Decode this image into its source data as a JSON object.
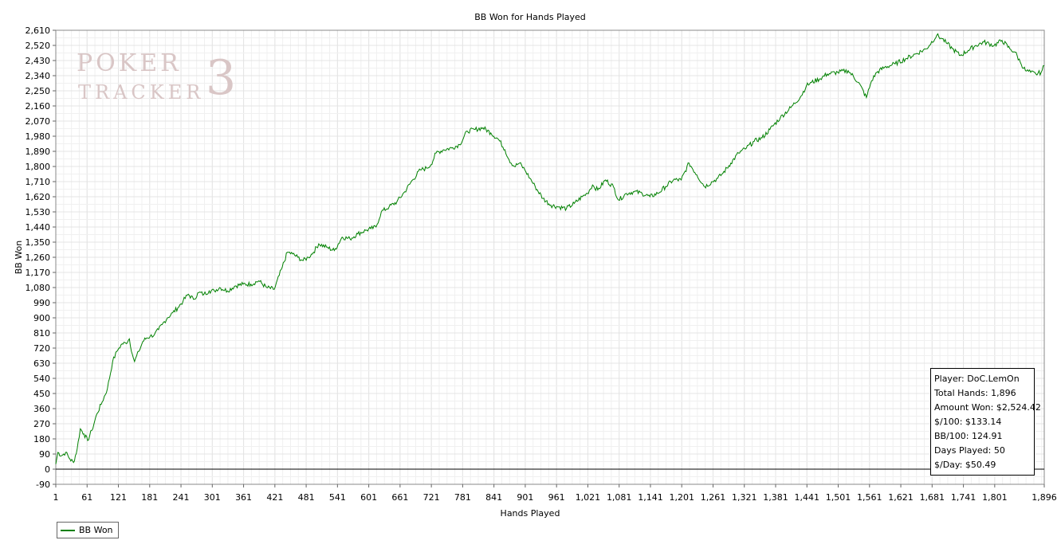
{
  "chart_data": {
    "type": "line",
    "title": "BB Won for Hands Played",
    "xlabel": "Hands Played",
    "ylabel": "BB Won",
    "xlim": [
      1,
      1896
    ],
    "ylim": [
      -90,
      2610
    ],
    "x_ticks": [
      "1",
      "61",
      "121",
      "181",
      "241",
      "301",
      "361",
      "421",
      "481",
      "541",
      "601",
      "661",
      "721",
      "781",
      "841",
      "901",
      "961",
      "1,021",
      "1,081",
      "1,141",
      "1,201",
      "1,261",
      "1,321",
      "1,381",
      "1,441",
      "1,501",
      "1,561",
      "1,621",
      "1,681",
      "1,741",
      "1,801",
      "1,896"
    ],
    "x_tick_values": [
      1,
      61,
      121,
      181,
      241,
      301,
      361,
      421,
      481,
      541,
      601,
      661,
      721,
      781,
      841,
      901,
      961,
      1021,
      1081,
      1141,
      1201,
      1261,
      1321,
      1381,
      1441,
      1501,
      1561,
      1621,
      1681,
      1741,
      1801,
      1896
    ],
    "y_ticks": [
      "-90",
      "0",
      "90",
      "180",
      "270",
      "360",
      "450",
      "540",
      "630",
      "720",
      "810",
      "900",
      "990",
      "1,080",
      "1,170",
      "1,260",
      "1,350",
      "1,440",
      "1,530",
      "1,620",
      "1,710",
      "1,800",
      "1,890",
      "1,980",
      "2,070",
      "2,160",
      "2,250",
      "2,340",
      "2,430",
      "2,520",
      "2,610"
    ],
    "y_tick_values": [
      -90,
      0,
      90,
      180,
      270,
      360,
      450,
      540,
      630,
      720,
      810,
      900,
      990,
      1080,
      1170,
      1260,
      1350,
      1440,
      1530,
      1620,
      1710,
      1800,
      1890,
      1980,
      2070,
      2160,
      2250,
      2340,
      2430,
      2520,
      2610
    ],
    "grid": true,
    "legend_placement": "bottom-left",
    "series": [
      {
        "name": "BB Won",
        "color": "#008000",
        "x": [
          1,
          5,
          12,
          20,
          28,
          35,
          42,
          48,
          55,
          62,
          70,
          80,
          90,
          100,
          110,
          118,
          122,
          128,
          135,
          142,
          148,
          152,
          160,
          168,
          175,
          182,
          190,
          198,
          205,
          215,
          225,
          235,
          245,
          255,
          265,
          275,
          285,
          295,
          305,
          315,
          330,
          345,
          360,
          375,
          390,
          405,
          420,
          435,
          445,
          455,
          465,
          475,
          485,
          495,
          505,
          520,
          535,
          550,
          565,
          580,
          595,
          605,
          615,
          625,
          640,
          655,
          670,
          685,
          700,
          712,
          720,
          730,
          745,
          760,
          775,
          790,
          805,
          820,
          835,
          850,
          862,
          870,
          880,
          890,
          900,
          910,
          920,
          935,
          950,
          965,
          980,
          995,
          1010,
          1020,
          1030,
          1040,
          1055,
          1070,
          1080,
          1095,
          1110,
          1125,
          1140,
          1155,
          1170,
          1185,
          1200,
          1215,
          1230,
          1245,
          1260,
          1270,
          1280,
          1295,
          1310,
          1325,
          1340,
          1355,
          1370,
          1390,
          1410,
          1430,
          1440,
          1450,
          1465,
          1480,
          1500,
          1520,
          1540,
          1555,
          1565,
          1575,
          1590,
          1610,
          1630,
          1650,
          1670,
          1690,
          1700,
          1710,
          1720,
          1735,
          1750,
          1765,
          1780,
          1800,
          1815,
          1830,
          1840,
          1850,
          1860,
          1870,
          1880,
          1890,
          1896
        ],
        "values": [
          30,
          100,
          80,
          100,
          60,
          40,
          120,
          240,
          210,
          170,
          230,
          330,
          400,
          480,
          640,
          700,
          720,
          745,
          750,
          775,
          680,
          640,
          700,
          760,
          780,
          790,
          800,
          830,
          860,
          900,
          930,
          960,
          1000,
          1040,
          1010,
          1050,
          1040,
          1060,
          1060,
          1080,
          1060,
          1090,
          1100,
          1100,
          1120,
          1080,
          1070,
          1200,
          1290,
          1280,
          1260,
          1240,
          1260,
          1290,
          1340,
          1320,
          1300,
          1380,
          1370,
          1400,
          1420,
          1430,
          1440,
          1530,
          1560,
          1590,
          1650,
          1720,
          1780,
          1790,
          1810,
          1880,
          1900,
          1910,
          1930,
          2010,
          2020,
          2030,
          2000,
          1960,
          1900,
          1840,
          1800,
          1820,
          1780,
          1730,
          1680,
          1610,
          1570,
          1560,
          1550,
          1580,
          1620,
          1640,
          1690,
          1660,
          1720,
          1680,
          1600,
          1640,
          1650,
          1640,
          1620,
          1640,
          1680,
          1720,
          1720,
          1820,
          1750,
          1680,
          1710,
          1730,
          1760,
          1820,
          1880,
          1910,
          1950,
          1970,
          2020,
          2090,
          2150,
          2220,
          2280,
          2300,
          2320,
          2350,
          2360,
          2370,
          2300,
          2210,
          2310,
          2360,
          2390,
          2410,
          2440,
          2470,
          2500,
          2580,
          2560,
          2530,
          2500,
          2460,
          2490,
          2520,
          2540,
          2520,
          2550,
          2500,
          2480,
          2420,
          2370,
          2360,
          2350,
          2360,
          2400
        ]
      }
    ]
  },
  "stats": {
    "player": "Player: DoC.LemOn",
    "total_hands": "Total Hands: 1,896",
    "amount_won": "Amount Won: $2,524.42",
    "per_100": "$/100: $133.14",
    "bb_per_100": "BB/100: 124.91",
    "days_played": "Days Played: 50",
    "per_day": "$/Day: $50.49"
  },
  "watermark": {
    "line1": "POKER",
    "line2": "TRACKER",
    "mark": "3"
  }
}
